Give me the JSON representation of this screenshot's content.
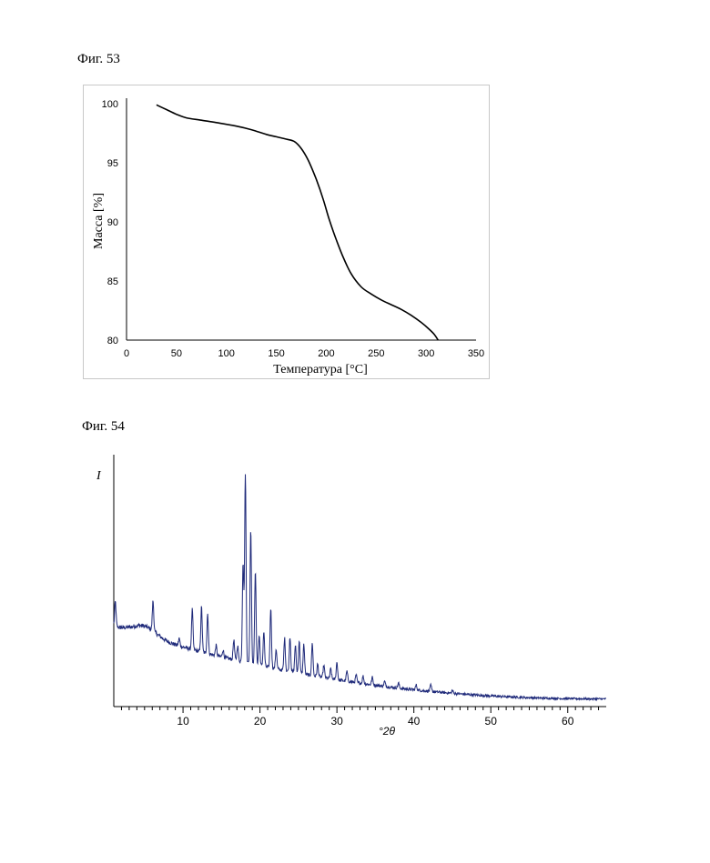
{
  "figures": {
    "fig53_caption": "Фиг. 53",
    "fig54_caption": "Фиг. 54"
  },
  "chart_data": [
    {
      "type": "line",
      "xlabel": "Температура [°C]",
      "ylabel": "Масса [%]",
      "xlim": [
        0,
        350
      ],
      "ylim": [
        80,
        100
      ],
      "xticks": [
        0,
        50,
        100,
        150,
        200,
        250,
        300,
        350
      ],
      "yticks": [
        80,
        85,
        90,
        95,
        100
      ],
      "grid": false,
      "line_color": "#000000",
      "series": [
        {
          "x": [
            30,
            40,
            50,
            60,
            75,
            90,
            110,
            125,
            140,
            150,
            160,
            168,
            175,
            182,
            190,
            197,
            203,
            210,
            217,
            225,
            235,
            245,
            255,
            265,
            275,
            285,
            295,
            302,
            308,
            312
          ],
          "y": [
            99.9,
            99.5,
            99.1,
            98.8,
            98.6,
            98.4,
            98.1,
            97.8,
            97.4,
            97.2,
            97.0,
            96.8,
            96.2,
            95.2,
            93.6,
            91.9,
            90.2,
            88.5,
            87.0,
            85.6,
            84.5,
            83.9,
            83.4,
            83.0,
            82.6,
            82.1,
            81.5,
            81.0,
            80.5,
            80.0
          ]
        }
      ]
    },
    {
      "type": "line",
      "xlabel": "°2θ",
      "ylabel": "I",
      "xlim": [
        1,
        65
      ],
      "xticks": [
        10,
        20,
        30,
        40,
        50,
        60
      ],
      "grid": false,
      "line_color": "#1f2a7a",
      "background": {
        "x0": 1,
        "x1": 65,
        "start": 0.31,
        "end": 0.02,
        "hump_center": 5,
        "hump_height": 0.04
      },
      "peaks": [
        {
          "x": 1.2,
          "h": 0.1
        },
        {
          "x": 6.1,
          "h": 0.12
        },
        {
          "x": 9.5,
          "h": 0.03
        },
        {
          "x": 11.2,
          "h": 0.16
        },
        {
          "x": 12.4,
          "h": 0.18
        },
        {
          "x": 13.2,
          "h": 0.16
        },
        {
          "x": 14.3,
          "h": 0.04
        },
        {
          "x": 15.2,
          "h": 0.03
        },
        {
          "x": 16.6,
          "h": 0.08
        },
        {
          "x": 17.1,
          "h": 0.06
        },
        {
          "x": 17.8,
          "h": 0.4
        },
        {
          "x": 18.1,
          "h": 0.76
        },
        {
          "x": 18.8,
          "h": 0.54
        },
        {
          "x": 19.4,
          "h": 0.38
        },
        {
          "x": 19.9,
          "h": 0.12
        },
        {
          "x": 20.5,
          "h": 0.14
        },
        {
          "x": 21.4,
          "h": 0.24
        },
        {
          "x": 22.1,
          "h": 0.08
        },
        {
          "x": 23.2,
          "h": 0.13
        },
        {
          "x": 23.9,
          "h": 0.14
        },
        {
          "x": 24.6,
          "h": 0.11
        },
        {
          "x": 25.1,
          "h": 0.13
        },
        {
          "x": 25.7,
          "h": 0.12
        },
        {
          "x": 26.8,
          "h": 0.13
        },
        {
          "x": 27.5,
          "h": 0.05
        },
        {
          "x": 28.3,
          "h": 0.05
        },
        {
          "x": 29.2,
          "h": 0.04
        },
        {
          "x": 30.0,
          "h": 0.07
        },
        {
          "x": 31.3,
          "h": 0.04
        },
        {
          "x": 32.5,
          "h": 0.03
        },
        {
          "x": 33.4,
          "h": 0.03
        },
        {
          "x": 34.6,
          "h": 0.03
        },
        {
          "x": 36.2,
          "h": 0.02
        },
        {
          "x": 38.0,
          "h": 0.02
        },
        {
          "x": 40.3,
          "h": 0.02
        },
        {
          "x": 42.2,
          "h": 0.025
        },
        {
          "x": 45.0,
          "h": 0.012
        }
      ]
    }
  ]
}
